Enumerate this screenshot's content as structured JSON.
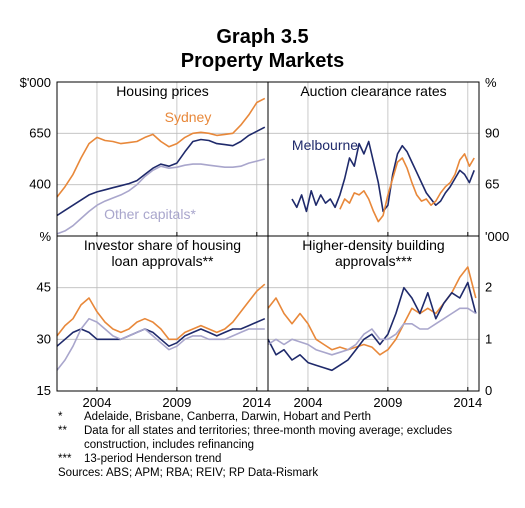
{
  "title": "Graph 3.5",
  "subtitle": "Property Markets",
  "colors": {
    "orange": "#e8883a",
    "navy": "#1f2a6b",
    "lavender": "#a9a6cc",
    "grid": "#bdbdbd"
  },
  "chart_data": [
    {
      "type": "line",
      "title": "Housing prices",
      "axis_unit": "$'000",
      "xlim": [
        2001.5,
        2014.7
      ],
      "ylim": [
        150,
        900
      ],
      "yticks": [
        150,
        400,
        650,
        900
      ],
      "ytick_labels": [
        "",
        "400",
        "650",
        ""
      ],
      "xticks": [
        2004,
        2009,
        2014
      ],
      "xtick_labels": [
        "2004",
        "2009",
        "2014"
      ],
      "series": [
        {
          "name": "Sydney",
          "color": "#e8883a",
          "x": [
            2001.5,
            2002.0,
            2002.5,
            2003.0,
            2003.5,
            2004.0,
            2004.5,
            2005.0,
            2005.5,
            2006.0,
            2006.5,
            2007.0,
            2007.5,
            2008.0,
            2008.5,
            2009.0,
            2009.5,
            2010.0,
            2010.5,
            2011.0,
            2011.5,
            2012.0,
            2012.5,
            2013.0,
            2013.5,
            2014.0,
            2014.5
          ],
          "y": [
            340,
            390,
            450,
            530,
            600,
            630,
            615,
            610,
            600,
            605,
            610,
            630,
            645,
            610,
            585,
            600,
            630,
            650,
            655,
            650,
            640,
            645,
            650,
            690,
            740,
            800,
            820
          ]
        },
        {
          "name": "Melbourne",
          "color": "#1f2a6b",
          "x": [
            2001.5,
            2002.0,
            2002.5,
            2003.0,
            2003.5,
            2004.0,
            2004.5,
            2005.0,
            2005.5,
            2006.0,
            2006.5,
            2007.0,
            2007.5,
            2008.0,
            2008.5,
            2009.0,
            2009.5,
            2010.0,
            2010.5,
            2011.0,
            2011.5,
            2012.0,
            2012.5,
            2013.0,
            2013.5,
            2014.0,
            2014.5
          ],
          "y": [
            250,
            275,
            300,
            325,
            350,
            365,
            375,
            385,
            395,
            405,
            420,
            450,
            480,
            500,
            490,
            505,
            560,
            610,
            620,
            615,
            600,
            595,
            590,
            610,
            640,
            660,
            680
          ]
        },
        {
          "name": "Other capitals*",
          "color": "#a9a6cc",
          "x": [
            2001.5,
            2002.0,
            2002.5,
            2003.0,
            2003.5,
            2004.0,
            2004.5,
            2005.0,
            2005.5,
            2006.0,
            2006.5,
            2007.0,
            2007.5,
            2008.0,
            2008.5,
            2009.0,
            2009.5,
            2010.0,
            2010.5,
            2011.0,
            2011.5,
            2012.0,
            2012.5,
            2013.0,
            2013.5,
            2014.0,
            2014.5
          ],
          "y": [
            160,
            175,
            200,
            235,
            270,
            300,
            320,
            335,
            350,
            370,
            400,
            440,
            470,
            490,
            480,
            485,
            495,
            500,
            500,
            495,
            490,
            485,
            485,
            490,
            505,
            515,
            525
          ]
        }
      ]
    },
    {
      "type": "line",
      "title": "Auction clearance rates",
      "axis_unit": "%",
      "xlim": [
        2001.5,
        2014.7
      ],
      "ylim": [
        40,
        115
      ],
      "yticks": [
        40,
        65,
        90,
        115
      ],
      "ytick_labels": [
        "",
        "65",
        "90",
        ""
      ],
      "xticks": [
        2004,
        2009,
        2014
      ],
      "xtick_labels": [
        "2004",
        "2009",
        "2014"
      ],
      "series": [
        {
          "name": "Melbourne",
          "color": "#1f2a6b",
          "x": [
            2003.0,
            2003.3,
            2003.6,
            2003.9,
            2004.2,
            2004.5,
            2004.8,
            2005.1,
            2005.4,
            2005.7,
            2006.0,
            2006.3,
            2006.6,
            2006.9,
            2007.2,
            2007.5,
            2007.8,
            2008.1,
            2008.4,
            2008.7,
            2009.0,
            2009.3,
            2009.6,
            2009.9,
            2010.2,
            2010.5,
            2010.8,
            2011.1,
            2011.4,
            2011.7,
            2012.0,
            2012.3,
            2012.6,
            2012.9,
            2013.2,
            2013.5,
            2013.8,
            2014.1,
            2014.4
          ],
          "y": [
            58,
            54,
            60,
            52,
            62,
            55,
            60,
            56,
            58,
            54,
            60,
            68,
            78,
            74,
            85,
            80,
            86,
            76,
            66,
            52,
            55,
            70,
            80,
            84,
            81,
            76,
            71,
            66,
            61,
            58,
            55,
            57,
            61,
            64,
            68,
            72,
            70,
            66,
            72
          ]
        },
        {
          "name": "Sydney",
          "color": "#e8883a",
          "x": [
            2006.0,
            2006.3,
            2006.6,
            2006.9,
            2007.2,
            2007.5,
            2007.8,
            2008.1,
            2008.4,
            2008.7,
            2009.0,
            2009.3,
            2009.6,
            2009.9,
            2010.2,
            2010.5,
            2010.8,
            2011.1,
            2011.4,
            2011.7,
            2012.0,
            2012.3,
            2012.6,
            2012.9,
            2013.2,
            2013.5,
            2013.8,
            2014.1,
            2014.4
          ],
          "y": [
            53,
            58,
            56,
            61,
            60,
            62,
            58,
            52,
            47,
            50,
            60,
            68,
            76,
            78,
            73,
            66,
            60,
            57,
            58,
            55,
            57,
            61,
            64,
            66,
            70,
            77,
            80,
            74,
            78
          ]
        }
      ]
    },
    {
      "type": "line",
      "title": "Investor share of housing loan approvals**",
      "axis_unit": "%",
      "xlim": [
        2001.5,
        2014.7
      ],
      "ylim": [
        15,
        60
      ],
      "yticks": [
        15,
        30,
        45,
        60
      ],
      "ytick_labels": [
        "15",
        "30",
        "45",
        ""
      ],
      "xticks": [
        2004,
        2009,
        2014
      ],
      "xtick_labels": [
        "2004",
        "2009",
        "2014"
      ],
      "series": [
        {
          "name": "Sydney",
          "color": "#e8883a",
          "x": [
            2001.5,
            2002.0,
            2002.5,
            2003.0,
            2003.5,
            2004.0,
            2004.5,
            2005.0,
            2005.5,
            2006.0,
            2006.5,
            2007.0,
            2007.5,
            2008.0,
            2008.5,
            2009.0,
            2009.5,
            2010.0,
            2010.5,
            2011.0,
            2011.5,
            2012.0,
            2012.5,
            2013.0,
            2013.5,
            2014.0,
            2014.5
          ],
          "y": [
            31,
            34,
            36,
            40,
            42,
            38,
            35,
            33,
            32,
            33,
            35,
            36,
            35,
            33,
            30,
            30,
            32,
            33,
            34,
            33,
            32,
            33,
            35,
            38,
            41,
            44,
            46
          ]
        },
        {
          "name": "Melbourne",
          "color": "#1f2a6b",
          "x": [
            2001.5,
            2002.0,
            2002.5,
            2003.0,
            2003.5,
            2004.0,
            2004.5,
            2005.0,
            2005.5,
            2006.0,
            2006.5,
            2007.0,
            2007.5,
            2008.0,
            2008.5,
            2009.0,
            2009.5,
            2010.0,
            2010.5,
            2011.0,
            2011.5,
            2012.0,
            2012.5,
            2013.0,
            2013.5,
            2014.0,
            2014.5
          ],
          "y": [
            28,
            30,
            32,
            33,
            32,
            30,
            30,
            30,
            30,
            31,
            32,
            33,
            32,
            30,
            28,
            29,
            31,
            32,
            33,
            32,
            31,
            32,
            33,
            33,
            34,
            35,
            36
          ]
        },
        {
          "name": "Other capitals*",
          "color": "#a9a6cc",
          "x": [
            2001.5,
            2002.0,
            2002.5,
            2003.0,
            2003.5,
            2004.0,
            2004.5,
            2005.0,
            2005.5,
            2006.0,
            2006.5,
            2007.0,
            2007.5,
            2008.0,
            2008.5,
            2009.0,
            2009.5,
            2010.0,
            2010.5,
            2011.0,
            2011.5,
            2012.0,
            2012.5,
            2013.0,
            2013.5,
            2014.0,
            2014.5
          ],
          "y": [
            21,
            24,
            28,
            33,
            36,
            35,
            33,
            31,
            30,
            31,
            32,
            33,
            31,
            29,
            27,
            28,
            30,
            31,
            31,
            30,
            30,
            30,
            31,
            32,
            33,
            33,
            33
          ]
        }
      ]
    },
    {
      "type": "line",
      "title": "Higher-density building approvals***",
      "axis_unit": "'000",
      "xlim": [
        2001.5,
        2014.7
      ],
      "ylim": [
        0,
        3
      ],
      "yticks": [
        0,
        1,
        2,
        3
      ],
      "ytick_labels": [
        "0",
        "1",
        "2",
        ""
      ],
      "xticks": [
        2004,
        2009,
        2014
      ],
      "xtick_labels": [
        "2004",
        "2009",
        "2014"
      ],
      "series": [
        {
          "name": "Sydney",
          "color": "#e8883a",
          "x": [
            2001.5,
            2002.0,
            2002.5,
            2003.0,
            2003.5,
            2004.0,
            2004.5,
            2005.0,
            2005.5,
            2006.0,
            2006.5,
            2007.0,
            2007.5,
            2008.0,
            2008.5,
            2009.0,
            2009.5,
            2010.0,
            2010.5,
            2011.0,
            2011.5,
            2012.0,
            2012.5,
            2013.0,
            2013.5,
            2014.0,
            2014.5
          ],
          "y": [
            1.6,
            1.8,
            1.5,
            1.3,
            1.5,
            1.3,
            1.0,
            0.9,
            0.8,
            0.85,
            0.8,
            0.85,
            0.9,
            0.85,
            0.7,
            0.8,
            1.0,
            1.3,
            1.6,
            1.5,
            1.6,
            1.5,
            1.7,
            1.9,
            2.2,
            2.4,
            1.8
          ]
        },
        {
          "name": "Melbourne",
          "color": "#1f2a6b",
          "x": [
            2001.5,
            2002.0,
            2002.5,
            2003.0,
            2003.5,
            2004.0,
            2004.5,
            2005.0,
            2005.5,
            2006.0,
            2006.5,
            2007.0,
            2007.5,
            2008.0,
            2008.5,
            2009.0,
            2009.5,
            2010.0,
            2010.5,
            2011.0,
            2011.5,
            2012.0,
            2012.5,
            2013.0,
            2013.5,
            2014.0,
            2014.5
          ],
          "y": [
            1.0,
            0.7,
            0.8,
            0.6,
            0.7,
            0.55,
            0.5,
            0.45,
            0.4,
            0.5,
            0.6,
            0.8,
            1.0,
            1.1,
            0.9,
            1.1,
            1.5,
            2.0,
            1.8,
            1.5,
            1.9,
            1.4,
            1.7,
            1.9,
            1.8,
            2.1,
            1.5
          ]
        },
        {
          "name": "Other capitals*",
          "color": "#a9a6cc",
          "x": [
            2001.5,
            2002.0,
            2002.5,
            2003.0,
            2003.5,
            2004.0,
            2004.5,
            2005.0,
            2005.5,
            2006.0,
            2006.5,
            2007.0,
            2007.5,
            2008.0,
            2008.5,
            2009.0,
            2009.5,
            2010.0,
            2010.5,
            2011.0,
            2011.5,
            2012.0,
            2012.5,
            2013.0,
            2013.5,
            2014.0,
            2014.5
          ],
          "y": [
            0.9,
            1.0,
            0.9,
            1.0,
            0.95,
            0.9,
            0.8,
            0.75,
            0.7,
            0.75,
            0.8,
            0.9,
            1.1,
            1.2,
            1.0,
            1.0,
            1.1,
            1.3,
            1.3,
            1.2,
            1.2,
            1.3,
            1.4,
            1.5,
            1.6,
            1.6,
            1.5
          ]
        }
      ]
    }
  ],
  "series_labels": {
    "sydney": "Sydney",
    "melbourne": "Melbourne",
    "other_capitals": "Other capitals*"
  },
  "notes": [
    {
      "marker": "*",
      "text": "Adelaide, Brisbane, Canberra, Darwin, Hobart and Perth"
    },
    {
      "marker": "**",
      "text": "Data for all states and territories; three-month moving average; excludes construction, includes refinancing"
    },
    {
      "marker": "***",
      "text": "13-period Henderson trend"
    }
  ],
  "sources": "Sources: ABS; APM; RBA; REIV; RP Data-Rismark"
}
